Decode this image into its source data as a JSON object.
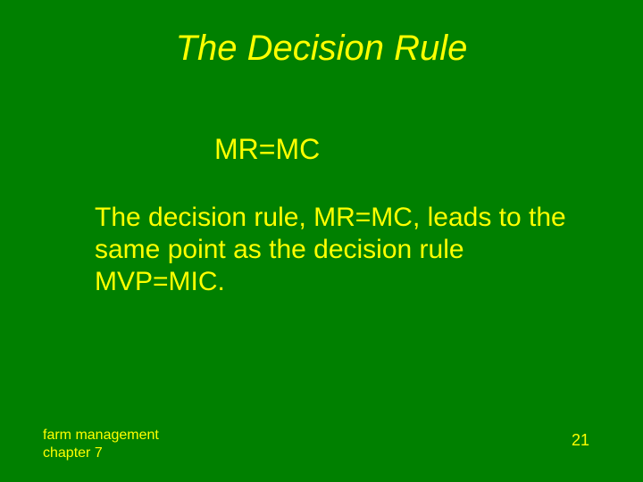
{
  "slide": {
    "title": "The Decision Rule",
    "equation": "MR=MC",
    "body": "The decision rule, MR=MC, leads to the same point as the decision rule MVP=MIC.",
    "footer_left_line1": "farm management",
    "footer_left_line2": "chapter 7",
    "page_number": "21",
    "background_color": "#008000",
    "text_color": "#ffff00",
    "title_fontsize": 40,
    "equation_fontsize": 32,
    "body_fontsize": 30,
    "footer_fontsize": 16
  }
}
